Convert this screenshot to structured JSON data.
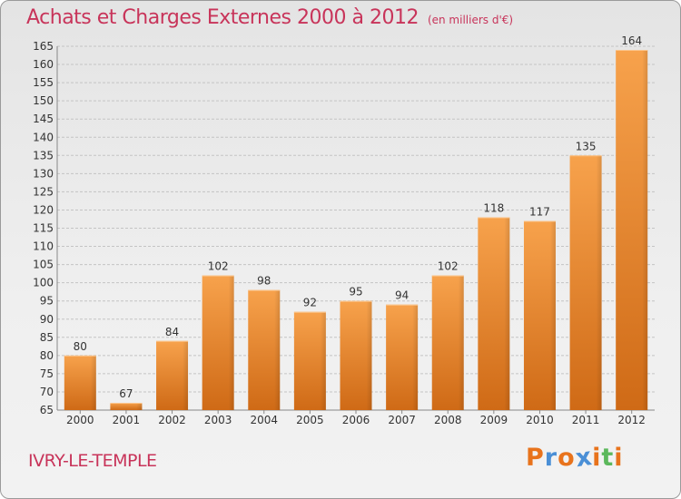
{
  "chart_data": {
    "type": "bar",
    "title": "Achats et Charges Externes 2000 à 2012",
    "unit": "(en milliers d'€)",
    "categories": [
      "2000",
      "2001",
      "2002",
      "2003",
      "2004",
      "2005",
      "2006",
      "2007",
      "2008",
      "2009",
      "2010",
      "2011",
      "2012"
    ],
    "values": [
      80,
      67,
      84,
      102,
      98,
      92,
      95,
      94,
      102,
      118,
      117,
      135,
      164
    ],
    "ylim": [
      65,
      165
    ],
    "yticks": [
      65,
      70,
      75,
      80,
      85,
      90,
      95,
      100,
      105,
      110,
      115,
      120,
      125,
      130,
      135,
      140,
      145,
      150,
      155,
      160,
      165
    ],
    "grid": true,
    "bar_color": "#f0913a"
  },
  "commune": "IVRY-LE-TEMPLE",
  "logo": {
    "letters": [
      "P",
      "r",
      "o",
      "x",
      "i",
      "t",
      "i"
    ],
    "colors": [
      "#e8731c",
      "#4a8fd6",
      "#e8731c",
      "#4a8fd6",
      "#e8731c",
      "#5cb85c",
      "#e8731c"
    ]
  }
}
